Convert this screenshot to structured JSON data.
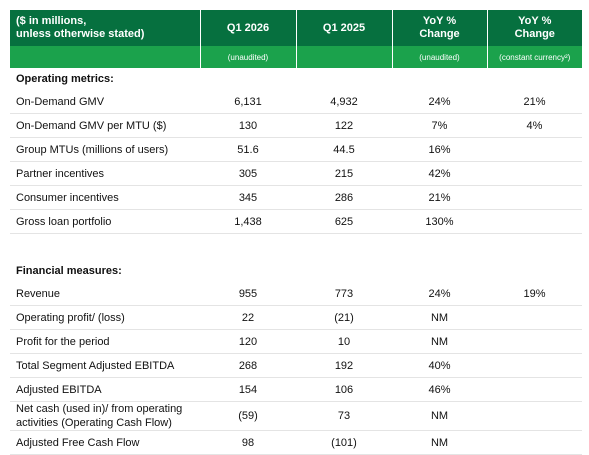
{
  "header": {
    "columns": [
      "($ in millions,\nunless otherwise stated)",
      "Q1 2026",
      "Q1 2025",
      "YoY %\nChange",
      "YoY %\nChange"
    ],
    "subheaders": [
      "(unaudited)",
      "(unaudited)",
      "(constant currency²)"
    ]
  },
  "sections": [
    {
      "title": "Operating metrics:",
      "rows": [
        {
          "label": "On-Demand GMV",
          "q1_2026": "6,131",
          "q1_2025": "4,932",
          "yoy": "24%",
          "yoy_cc": "21%"
        },
        {
          "label": "On-Demand GMV per MTU ($)",
          "q1_2026": "130",
          "q1_2025": "122",
          "yoy": "7%",
          "yoy_cc": "4%"
        },
        {
          "label": "Group MTUs (millions of users)",
          "q1_2026": "51.6",
          "q1_2025": "44.5",
          "yoy": "16%"
        },
        {
          "label": "Partner incentives",
          "q1_2026": "305",
          "q1_2025": "215",
          "yoy": "42%"
        },
        {
          "label": "Consumer incentives",
          "q1_2026": "345",
          "q1_2025": "286",
          "yoy": "21%"
        },
        {
          "label": "Gross loan portfolio",
          "q1_2026": "1,438",
          "q1_2025": "625",
          "yoy": "130%"
        }
      ]
    },
    {
      "title": "Financial measures:",
      "rows": [
        {
          "label": "Revenue",
          "q1_2026": "955",
          "q1_2025": "773",
          "yoy": "24%",
          "yoy_cc": "19%"
        },
        {
          "label": "Operating profit/ (loss)",
          "q1_2026": "22",
          "q1_2025": "(21)",
          "yoy": "NM"
        },
        {
          "label": "Profit for the period",
          "q1_2026": "120",
          "q1_2025": "10",
          "yoy": "NM"
        },
        {
          "label": "Total Segment Adjusted EBITDA",
          "q1_2026": "268",
          "q1_2025": "192",
          "yoy": "40%"
        },
        {
          "label": "Adjusted EBITDA",
          "q1_2026": "154",
          "q1_2025": "106",
          "yoy": "46%"
        },
        {
          "label": "Net cash (used in)/ from operating activities (Operating Cash Flow)",
          "q1_2026": "(59)",
          "q1_2025": "73",
          "yoy": "NM"
        },
        {
          "label": "Adjusted Free Cash Flow",
          "q1_2026": "98",
          "q1_2025": "(101)",
          "yoy": "NM"
        }
      ]
    }
  ]
}
